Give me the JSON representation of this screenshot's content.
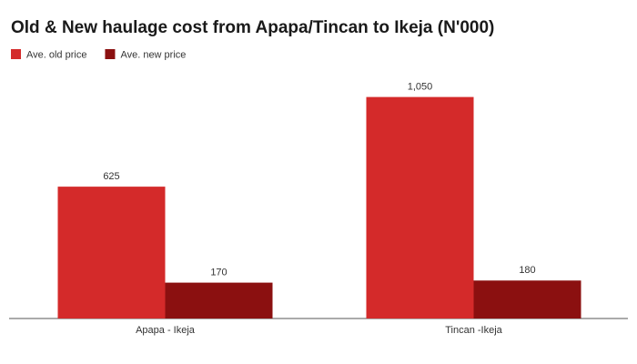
{
  "chart_data": {
    "type": "bar",
    "title": "Old & New haulage cost from Apapa/Tincan to Ikeja (N'000)",
    "categories": [
      "Apapa - Ikeja",
      "Tincan -Ikeja"
    ],
    "series": [
      {
        "name": "Ave. old price",
        "color": "#d42a2a",
        "values": [
          625,
          1050
        ],
        "value_labels": [
          "625",
          "1,050"
        ]
      },
      {
        "name": "Ave. new price",
        "color": "#8b1010",
        "values": [
          170,
          180
        ],
        "value_labels": [
          "170",
          "180"
        ]
      }
    ],
    "ylim": [
      0,
      1100
    ]
  }
}
